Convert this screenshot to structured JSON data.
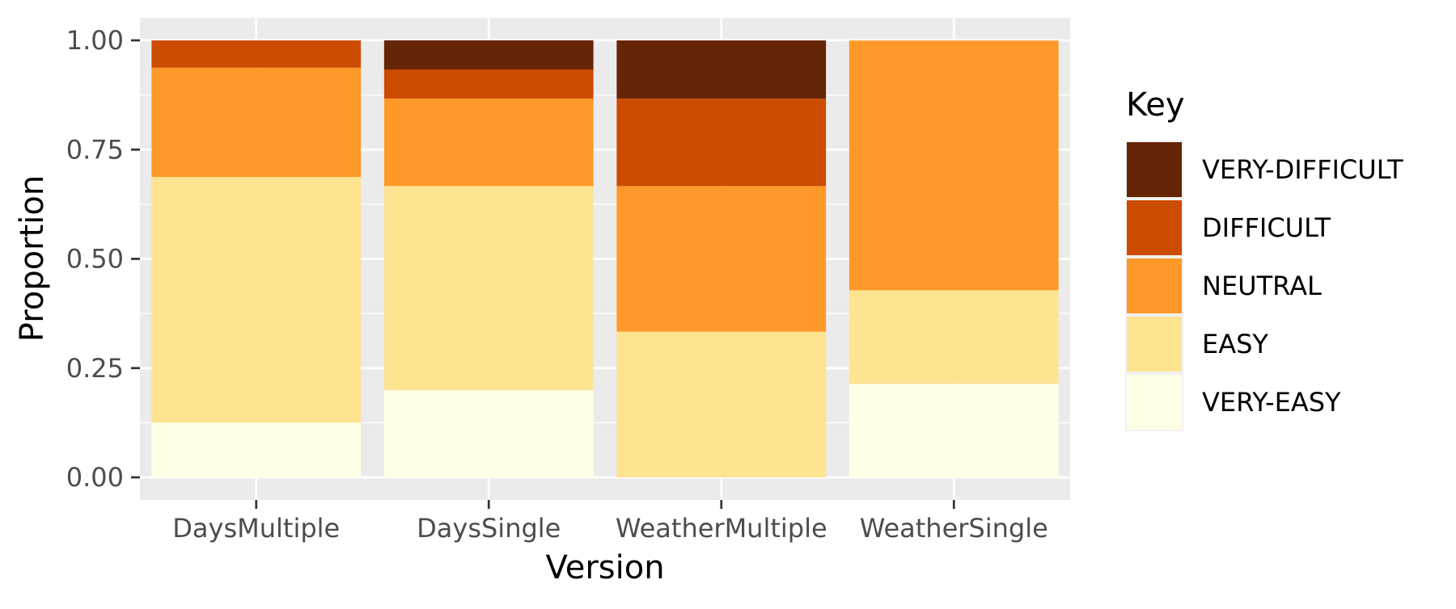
{
  "chart_data": {
    "type": "bar",
    "stacked": true,
    "title": "",
    "xlabel": "Version",
    "ylabel": "Proportion",
    "ylim": [
      0,
      1
    ],
    "grid": true,
    "categories": [
      "DaysMultiple",
      "DaysSingle",
      "WeatherMultiple",
      "WeatherSingle"
    ],
    "y_ticks": [
      "0.00",
      "0.25",
      "0.50",
      "0.75",
      "1.00"
    ],
    "legend": {
      "title": "Key",
      "placement": "right"
    },
    "series": [
      {
        "name": "VERY-EASY",
        "color": "#ffffe5",
        "values": [
          0.125,
          0.2,
          0.0,
          0.214
        ]
      },
      {
        "name": "EASY",
        "color": "#fee391",
        "values": [
          0.5625,
          0.4667,
          0.3333,
          0.2143
        ]
      },
      {
        "name": "NEUTRAL",
        "color": "#fe9929",
        "values": [
          0.25,
          0.2,
          0.3333,
          0.5714
        ]
      },
      {
        "name": "DIFFICULT",
        "color": "#cc4c02",
        "values": [
          0.0625,
          0.0667,
          0.2,
          0.0
        ]
      },
      {
        "name": "VERY-DIFFICULT",
        "color": "#662506",
        "values": [
          0.0,
          0.0667,
          0.1333,
          0.0
        ]
      }
    ]
  }
}
